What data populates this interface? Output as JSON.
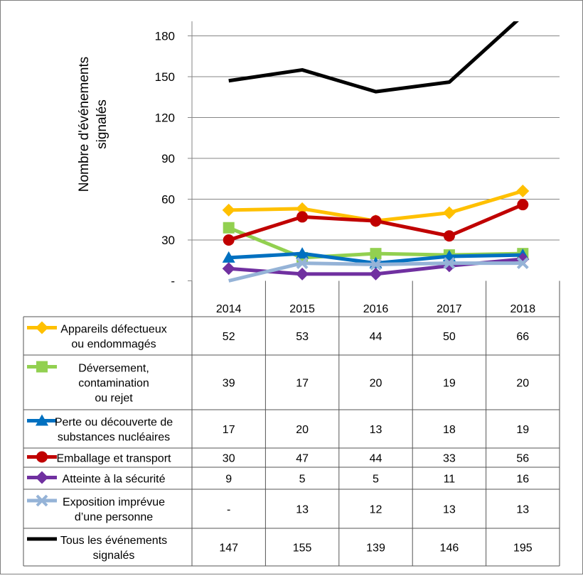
{
  "chart_data": {
    "type": "line",
    "ylabel": "Nombre d'événements signalés",
    "ylim": [
      0,
      180
    ],
    "yticks": [
      {
        "value": 0,
        "label": "-"
      },
      {
        "value": 30,
        "label": "30"
      },
      {
        "value": 60,
        "label": "60"
      },
      {
        "value": 90,
        "label": "90"
      },
      {
        "value": 120,
        "label": "120"
      },
      {
        "value": 150,
        "label": "150"
      },
      {
        "value": 180,
        "label": "180"
      }
    ],
    "grid": true,
    "legend": "data-table-below",
    "categories": [
      "2014",
      "2015",
      "2016",
      "2017",
      "2018"
    ],
    "series": [
      {
        "name": "Appareils défectueux ou endommagés",
        "label_lines": [
          "Appareils défectueux",
          "ou endommagés"
        ],
        "color": "#FFC000",
        "marker": "diamond",
        "values": [
          52,
          53,
          44,
          50,
          66
        ],
        "cells": [
          "52",
          "53",
          "44",
          "50",
          "66"
        ]
      },
      {
        "name": "Déversement, contamination ou rejet",
        "label_lines": [
          "Déversement,",
          "contamination",
          "ou rejet"
        ],
        "color": "#92D050",
        "marker": "square",
        "values": [
          39,
          17,
          20,
          19,
          20
        ],
        "cells": [
          "39",
          "17",
          "20",
          "19",
          "20"
        ]
      },
      {
        "name": "Perte ou découverte de substances nucléaires",
        "label_lines": [
          "Perte ou découverte de",
          "substances nucléaires"
        ],
        "color": "#0070C0",
        "marker": "triangle",
        "values": [
          17,
          20,
          13,
          18,
          19
        ],
        "cells": [
          "17",
          "20",
          "13",
          "18",
          "19"
        ]
      },
      {
        "name": "Emballage et transport",
        "label_lines": [
          "Emballage et transport"
        ],
        "color": "#C00000",
        "marker": "circle",
        "values": [
          30,
          47,
          44,
          33,
          56
        ],
        "cells": [
          "30",
          "47",
          "44",
          "33",
          "56"
        ]
      },
      {
        "name": "Atteinte à la sécurité",
        "label_lines": [
          "Atteinte à la sécurité"
        ],
        "color": "#7030A0",
        "marker": "diamond",
        "values": [
          9,
          5,
          5,
          11,
          16
        ],
        "cells": [
          "9",
          "5",
          "5",
          "11",
          "16"
        ]
      },
      {
        "name": "Exposition imprévue d’une personne",
        "label_lines": [
          "Exposition imprévue",
          "d’une personne"
        ],
        "color": "#95B3D7",
        "marker": "x",
        "values": [
          0,
          13,
          12,
          13,
          13
        ],
        "cells": [
          "-",
          "13",
          "12",
          "13",
          "13"
        ]
      },
      {
        "name": "Tous les événements signalés",
        "label_lines": [
          "Tous les événements",
          "signalés"
        ],
        "color": "#000000",
        "marker": "none",
        "values": [
          147,
          155,
          139,
          146,
          195
        ],
        "cells": [
          "147",
          "155",
          "139",
          "146",
          "195"
        ]
      }
    ]
  }
}
